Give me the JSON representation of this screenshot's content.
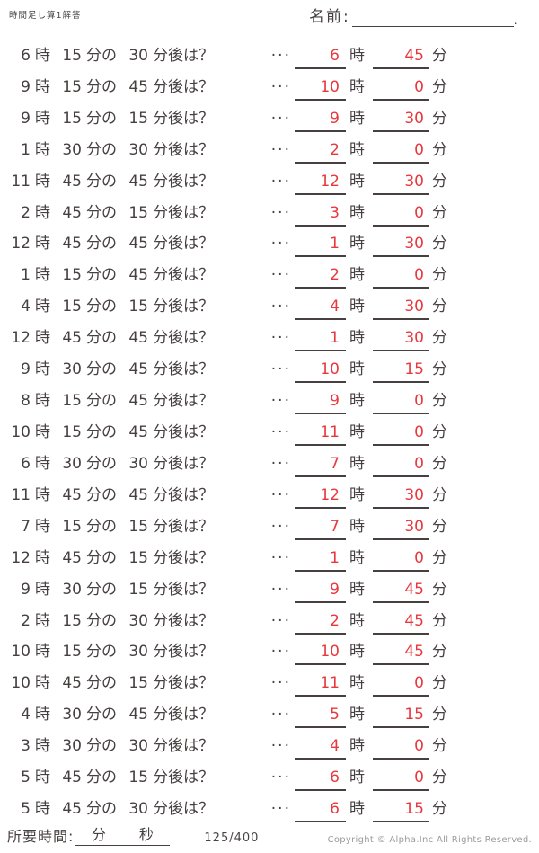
{
  "header": {
    "title": "時間足し算1解答",
    "name_label": "名前:",
    "name_suffix": "."
  },
  "labels": {
    "hour": "時",
    "min_no": "分の",
    "after": "分後は？",
    "dots": "···",
    "min": "分"
  },
  "rows": [
    {
      "h": "6",
      "m": "15",
      "add": "30",
      "ah": "6",
      "am": "45"
    },
    {
      "h": "9",
      "m": "15",
      "add": "45",
      "ah": "10",
      "am": "0"
    },
    {
      "h": "9",
      "m": "15",
      "add": "15",
      "ah": "9",
      "am": "30"
    },
    {
      "h": "1",
      "m": "30",
      "add": "30",
      "ah": "2",
      "am": "0"
    },
    {
      "h": "11",
      "m": "45",
      "add": "45",
      "ah": "12",
      "am": "30"
    },
    {
      "h": "2",
      "m": "45",
      "add": "15",
      "ah": "3",
      "am": "0"
    },
    {
      "h": "12",
      "m": "45",
      "add": "45",
      "ah": "1",
      "am": "30"
    },
    {
      "h": "1",
      "m": "15",
      "add": "45",
      "ah": "2",
      "am": "0"
    },
    {
      "h": "4",
      "m": "15",
      "add": "15",
      "ah": "4",
      "am": "30"
    },
    {
      "h": "12",
      "m": "45",
      "add": "45",
      "ah": "1",
      "am": "30"
    },
    {
      "h": "9",
      "m": "30",
      "add": "45",
      "ah": "10",
      "am": "15"
    },
    {
      "h": "8",
      "m": "15",
      "add": "45",
      "ah": "9",
      "am": "0"
    },
    {
      "h": "10",
      "m": "15",
      "add": "45",
      "ah": "11",
      "am": "0"
    },
    {
      "h": "6",
      "m": "30",
      "add": "30",
      "ah": "7",
      "am": "0"
    },
    {
      "h": "11",
      "m": "45",
      "add": "45",
      "ah": "12",
      "am": "30"
    },
    {
      "h": "7",
      "m": "15",
      "add": "15",
      "ah": "7",
      "am": "30"
    },
    {
      "h": "12",
      "m": "45",
      "add": "15",
      "ah": "1",
      "am": "0"
    },
    {
      "h": "9",
      "m": "30",
      "add": "15",
      "ah": "9",
      "am": "45"
    },
    {
      "h": "2",
      "m": "15",
      "add": "30",
      "ah": "2",
      "am": "45"
    },
    {
      "h": "10",
      "m": "15",
      "add": "30",
      "ah": "10",
      "am": "45"
    },
    {
      "h": "10",
      "m": "45",
      "add": "15",
      "ah": "11",
      "am": "0"
    },
    {
      "h": "4",
      "m": "30",
      "add": "45",
      "ah": "5",
      "am": "15"
    },
    {
      "h": "3",
      "m": "30",
      "add": "30",
      "ah": "4",
      "am": "0"
    },
    {
      "h": "5",
      "m": "45",
      "add": "15",
      "ah": "6",
      "am": "0"
    },
    {
      "h": "5",
      "m": "45",
      "add": "30",
      "ah": "6",
      "am": "15"
    }
  ],
  "footer": {
    "time_label": "所要時間:",
    "min_label": "分",
    "sec_label": "秒",
    "page": "125/400",
    "copyright": "Copyright ©  Alpha.Inc All Rights Reserved."
  },
  "colors": {
    "ink": "#474040",
    "answer_red": "#e8383d",
    "muted_gray": "#9b9b9b"
  }
}
